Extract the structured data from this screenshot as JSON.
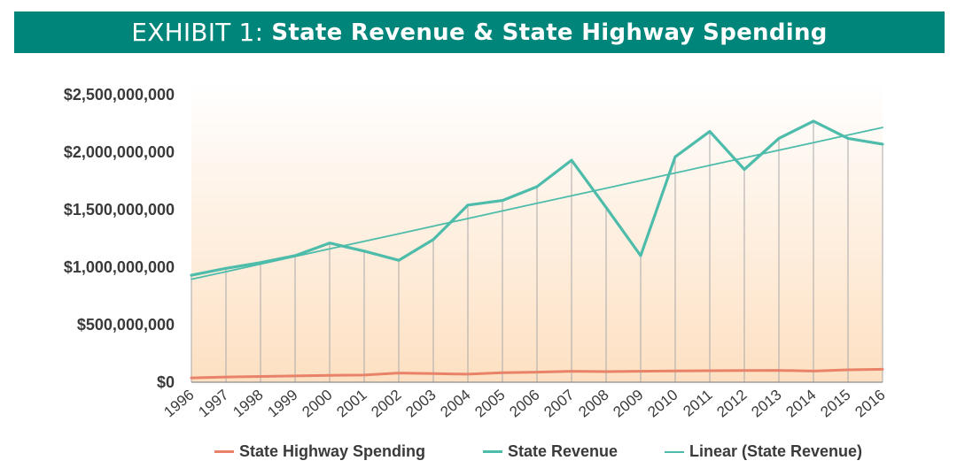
{
  "banner": {
    "prefix": "EXHIBIT 1: ",
    "title": "State Revenue & State Highway Spending",
    "color": "#00857a"
  },
  "chart_data": {
    "type": "line",
    "title": "State Revenue & State Highway Spending",
    "categories": [
      "1996",
      "1997",
      "1998",
      "1999",
      "2000",
      "2001",
      "2002",
      "2003",
      "2004",
      "2005",
      "2006",
      "2007",
      "2008",
      "2009",
      "2010",
      "2011",
      "2012",
      "2013",
      "2014",
      "2015",
      "2016"
    ],
    "ylim": [
      0,
      2500000000
    ],
    "yticks": [
      0,
      500000000,
      1000000000,
      1500000000,
      2000000000,
      2500000000
    ],
    "ytick_labels": [
      "$0",
      "$500,000,000",
      "$1,000,000,000",
      "$1,500,000,000",
      "$2,000,000,000",
      "$2,500,000,000"
    ],
    "grid": "vertical lines at each year",
    "background": "gradient from white at top to light peach at bottom",
    "legend_position": "bottom",
    "series": [
      {
        "name": "State Highway Spending",
        "color": "#e8836a",
        "values": [
          38000000,
          45000000,
          50000000,
          55000000,
          60000000,
          62000000,
          80000000,
          75000000,
          70000000,
          82000000,
          88000000,
          95000000,
          92000000,
          95000000,
          98000000,
          100000000,
          102000000,
          103000000,
          97000000,
          108000000,
          112000000
        ]
      },
      {
        "name": "State Revenue",
        "color": "#4dbcaa",
        "values": [
          930000000,
          990000000,
          1040000000,
          1100000000,
          1210000000,
          1140000000,
          1060000000,
          1240000000,
          1540000000,
          1580000000,
          1700000000,
          1930000000,
          1520000000,
          1100000000,
          1960000000,
          2180000000,
          1850000000,
          2120000000,
          2270000000,
          2120000000,
          2070000000
        ]
      },
      {
        "name": "Linear (State Revenue)",
        "color": "#4dbcaa",
        "trendline_of": "State Revenue",
        "values": [
          895000000,
          961000000,
          1027000000,
          1093000000,
          1159000000,
          1225000000,
          1291000000,
          1357000000,
          1423000000,
          1489000000,
          1555000000,
          1621000000,
          1687000000,
          1753000000,
          1819000000,
          1885000000,
          1951000000,
          2017000000,
          2083000000,
          2149000000,
          2215000000
        ]
      }
    ]
  },
  "legend": [
    {
      "label": "State Highway Spending",
      "color": "#e8836a"
    },
    {
      "label": "State Revenue",
      "color": "#4dbcaa"
    },
    {
      "label": "Linear (State Revenue)",
      "color": "#4dbcaa"
    }
  ]
}
